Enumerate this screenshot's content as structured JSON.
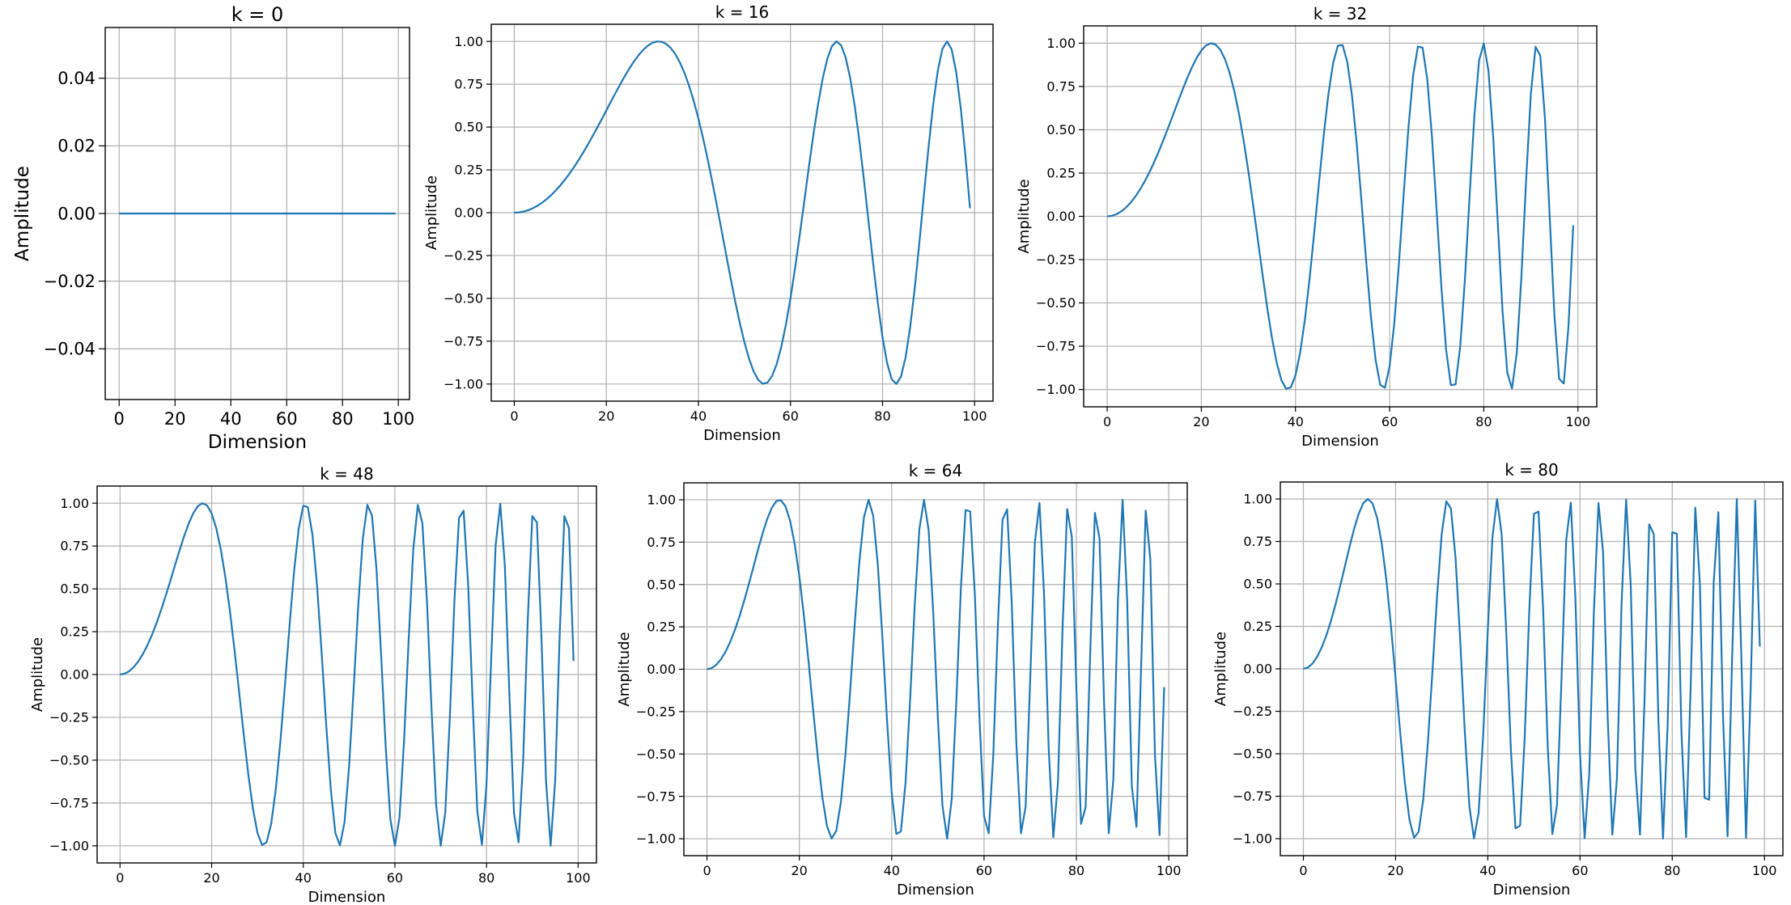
{
  "chart_data": [
    {
      "type": "line",
      "title": "k = 0",
      "xlabel": "Dimension",
      "ylabel": "Amplitude",
      "xlim": [
        -5,
        104
      ],
      "ylim": [
        -0.055,
        0.055
      ],
      "xticks": [
        0,
        20,
        40,
        60,
        80,
        100
      ],
      "yticks": [
        -0.04,
        -0.02,
        0.0,
        0.02,
        0.04
      ],
      "ytick_labels": [
        "−0.04",
        "−0.02",
        "0.00",
        "0.02",
        "0.04"
      ],
      "grid": true,
      "series": [
        {
          "color": "#1f77b4",
          "x_range": [
            0,
            99
          ],
          "formula": "sin(x^2 * k / 10000)",
          "k": 0
        }
      ]
    },
    {
      "type": "line",
      "title": "k = 16",
      "xlabel": "Dimension",
      "ylabel": "Amplitude",
      "xlim": [
        -5,
        104
      ],
      "ylim": [
        -1.1,
        1.1
      ],
      "xticks": [
        0,
        20,
        40,
        60,
        80,
        100
      ],
      "yticks": [
        -1.0,
        -0.75,
        -0.5,
        -0.25,
        0.0,
        0.25,
        0.5,
        0.75,
        1.0
      ],
      "ytick_labels": [
        "−1.00",
        "−0.75",
        "−0.50",
        "−0.25",
        "0.00",
        "0.25",
        "0.50",
        "0.75",
        "1.00"
      ],
      "grid": true,
      "series": [
        {
          "color": "#1f77b4",
          "x_range": [
            0,
            99
          ],
          "formula": "sin(x^2 * k / 10000)",
          "k": 16
        }
      ]
    },
    {
      "type": "line",
      "title": "k = 32",
      "xlabel": "Dimension",
      "ylabel": "Amplitude",
      "xlim": [
        -5,
        104
      ],
      "ylim": [
        -1.1,
        1.1
      ],
      "xticks": [
        0,
        20,
        40,
        60,
        80,
        100
      ],
      "yticks": [
        -1.0,
        -0.75,
        -0.5,
        -0.25,
        0.0,
        0.25,
        0.5,
        0.75,
        1.0
      ],
      "ytick_labels": [
        "−1.00",
        "−0.75",
        "−0.50",
        "−0.25",
        "0.00",
        "0.25",
        "0.50",
        "0.75",
        "1.00"
      ],
      "grid": true,
      "series": [
        {
          "color": "#1f77b4",
          "x_range": [
            0,
            99
          ],
          "formula": "sin(x^2 * k / 10000)",
          "k": 32
        }
      ]
    },
    {
      "type": "line",
      "title": "k = 48",
      "xlabel": "Dimension",
      "ylabel": "Amplitude",
      "xlim": [
        -5,
        104
      ],
      "ylim": [
        -1.1,
        1.1
      ],
      "xticks": [
        0,
        20,
        40,
        60,
        80,
        100
      ],
      "yticks": [
        -1.0,
        -0.75,
        -0.5,
        -0.25,
        0.0,
        0.25,
        0.5,
        0.75,
        1.0
      ],
      "ytick_labels": [
        "−1.00",
        "−0.75",
        "−0.50",
        "−0.25",
        "0.00",
        "0.25",
        "0.50",
        "0.75",
        "1.00"
      ],
      "grid": true,
      "series": [
        {
          "color": "#1f77b4",
          "x_range": [
            0,
            99
          ],
          "formula": "sin(x^2 * k / 10000)",
          "k": 48
        }
      ]
    },
    {
      "type": "line",
      "title": "k = 64",
      "xlabel": "Dimension",
      "ylabel": "Amplitude",
      "xlim": [
        -5,
        104
      ],
      "ylim": [
        -1.1,
        1.1
      ],
      "xticks": [
        0,
        20,
        40,
        60,
        80,
        100
      ],
      "yticks": [
        -1.0,
        -0.75,
        -0.5,
        -0.25,
        0.0,
        0.25,
        0.5,
        0.75,
        1.0
      ],
      "ytick_labels": [
        "−1.00",
        "−0.75",
        "−0.50",
        "−0.25",
        "0.00",
        "0.25",
        "0.50",
        "0.75",
        "1.00"
      ],
      "grid": true,
      "series": [
        {
          "color": "#1f77b4",
          "x_range": [
            0,
            99
          ],
          "formula": "sin(x^2 * k / 10000)",
          "k": 64
        }
      ]
    },
    {
      "type": "line",
      "title": "k = 80",
      "xlabel": "Dimension",
      "ylabel": "Amplitude",
      "xlim": [
        -5,
        104
      ],
      "ylim": [
        -1.1,
        1.1
      ],
      "xticks": [
        0,
        20,
        40,
        60,
        80,
        100
      ],
      "yticks": [
        -1.0,
        -0.75,
        -0.5,
        -0.25,
        0.0,
        0.25,
        0.5,
        0.75,
        1.0
      ],
      "ytick_labels": [
        "−1.00",
        "−0.75",
        "−0.50",
        "−0.25",
        "0.00",
        "0.25",
        "0.50",
        "0.75",
        "1.00"
      ],
      "grid": true,
      "series": [
        {
          "color": "#1f77b4",
          "x_range": [
            0,
            99
          ],
          "formula": "sin(x^2 * k / 10000)",
          "k": 80
        }
      ]
    }
  ]
}
